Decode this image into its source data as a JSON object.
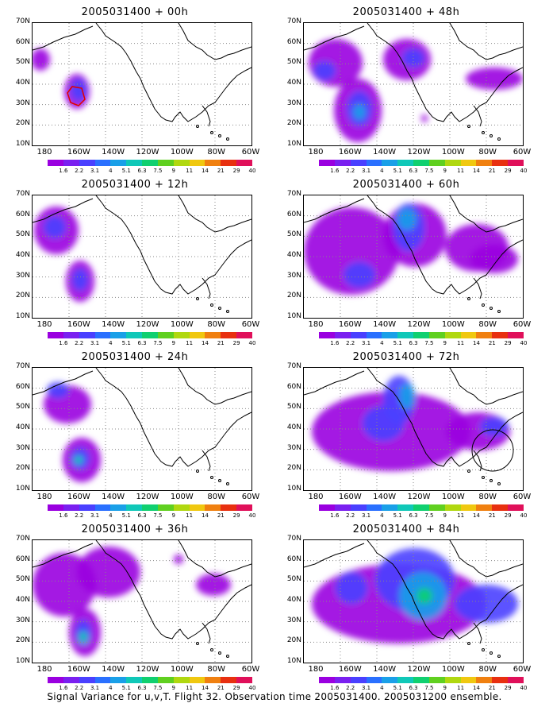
{
  "caption": "Signal Variance for u,v,T. Flight 32. Observation time 2005031400. 2005031200 ensemble.",
  "lat_labels": [
    "70N",
    "60N",
    "50N",
    "40N",
    "30N",
    "20N",
    "10N"
  ],
  "lon_labels": [
    "180",
    "160W",
    "140W",
    "120W",
    "100W",
    "80W",
    "60W"
  ],
  "colorbar": {
    "labels": [
      "1.6",
      "2.2",
      "3.1",
      "4",
      "5.1",
      "6.3",
      "7.5",
      "9",
      "11",
      "14",
      "21",
      "29",
      "40"
    ],
    "colors": [
      "#9a00e0",
      "#7a20f0",
      "#4a40ff",
      "#2a70ff",
      "#1aa0e8",
      "#10c8b8",
      "#10d070",
      "#60d020",
      "#b0d810",
      "#f0c810",
      "#f08010",
      "#e83010",
      "#e0105a"
    ]
  },
  "chart_data": [
    {
      "type": "heatmap",
      "title": "2005031400 + 00h",
      "lon_range": [
        "180",
        "60W"
      ],
      "lat_range": [
        "10N",
        "70N"
      ]
    },
    {
      "type": "heatmap",
      "title": "2005031400 + 48h",
      "lon_range": [
        "180",
        "60W"
      ],
      "lat_range": [
        "10N",
        "70N"
      ]
    },
    {
      "type": "heatmap",
      "title": "2005031400 + 12h",
      "lon_range": [
        "180",
        "60W"
      ],
      "lat_range": [
        "10N",
        "70N"
      ]
    },
    {
      "type": "heatmap",
      "title": "2005031400 + 60h",
      "lon_range": [
        "180",
        "60W"
      ],
      "lat_range": [
        "10N",
        "70N"
      ]
    },
    {
      "type": "heatmap",
      "title": "2005031400 + 24h",
      "lon_range": [
        "180",
        "60W"
      ],
      "lat_range": [
        "10N",
        "70N"
      ]
    },
    {
      "type": "heatmap",
      "title": "2005031400 + 72h",
      "lon_range": [
        "180",
        "60W"
      ],
      "lat_range": [
        "10N",
        "70N"
      ]
    },
    {
      "type": "heatmap",
      "title": "2005031400 + 36h",
      "lon_range": [
        "180",
        "60W"
      ],
      "lat_range": [
        "10N",
        "70N"
      ]
    },
    {
      "type": "heatmap",
      "title": "2005031400 + 84h",
      "lon_range": [
        "180",
        "60W"
      ],
      "lat_range": [
        "10N",
        "70N"
      ]
    }
  ]
}
